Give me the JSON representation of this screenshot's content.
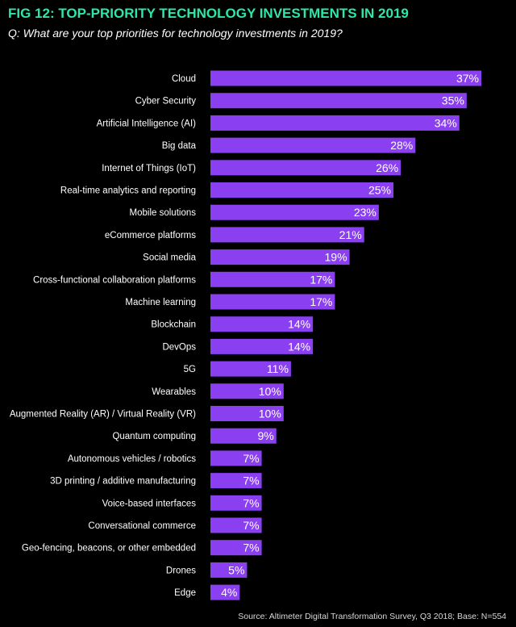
{
  "header": {
    "title": "FIG 12: TOP-PRIORITY TECHNOLOGY INVESTMENTS IN 2019",
    "subtitle": "Q: What are your top priorities for technology investments in 2019?"
  },
  "footer": {
    "source": "Source: Altimeter Digital Transformation Survey, Q3 2018; Base: N=554"
  },
  "colors": {
    "bar": "#8a3ff0",
    "title": "#2ee6a8",
    "background": "#000000"
  },
  "chart_data": {
    "type": "bar",
    "orientation": "horizontal",
    "title": "FIG 12: TOP-PRIORITY TECHNOLOGY INVESTMENTS IN 2019",
    "subtitle": "Q: What are your top priorities for technology investments in 2019?",
    "xlabel": "",
    "ylabel": "",
    "unit": "%",
    "xlim": [
      0,
      37
    ],
    "grid": false,
    "categories": [
      "Cloud",
      "Cyber Security",
      "Artificial Intelligence (AI)",
      "Big data",
      "Internet of Things (IoT)",
      "Real-time analytics and reporting",
      "Mobile solutions",
      "eCommerce platforms",
      "Social media",
      "Cross-functional collaboration platforms",
      "Machine learning",
      "Blockchain",
      "DevOps",
      "5G",
      "Wearables",
      "Augmented Reality (AR) / Virtual Reality (VR)",
      "Quantum computing",
      "Autonomous vehicles / robotics",
      "3D printing / additive manufacturing",
      "Voice-based interfaces",
      "Conversational commerce",
      "Geo-fencing, beacons, or other embedded",
      "Drones",
      "Edge"
    ],
    "values": [
      37,
      35,
      34,
      28,
      26,
      25,
      23,
      21,
      19,
      17,
      17,
      14,
      14,
      11,
      10,
      10,
      9,
      7,
      7,
      7,
      7,
      7,
      5,
      4
    ],
    "value_labels": [
      "37%",
      "35%",
      "34%",
      "28%",
      "26%",
      "25%",
      "23%",
      "21%",
      "19%",
      "17%",
      "17%",
      "14%",
      "14%",
      "11%",
      "10%",
      "10%",
      "9%",
      "7%",
      "7%",
      "7%",
      "7%",
      "7%",
      "5%",
      "4%"
    ]
  }
}
